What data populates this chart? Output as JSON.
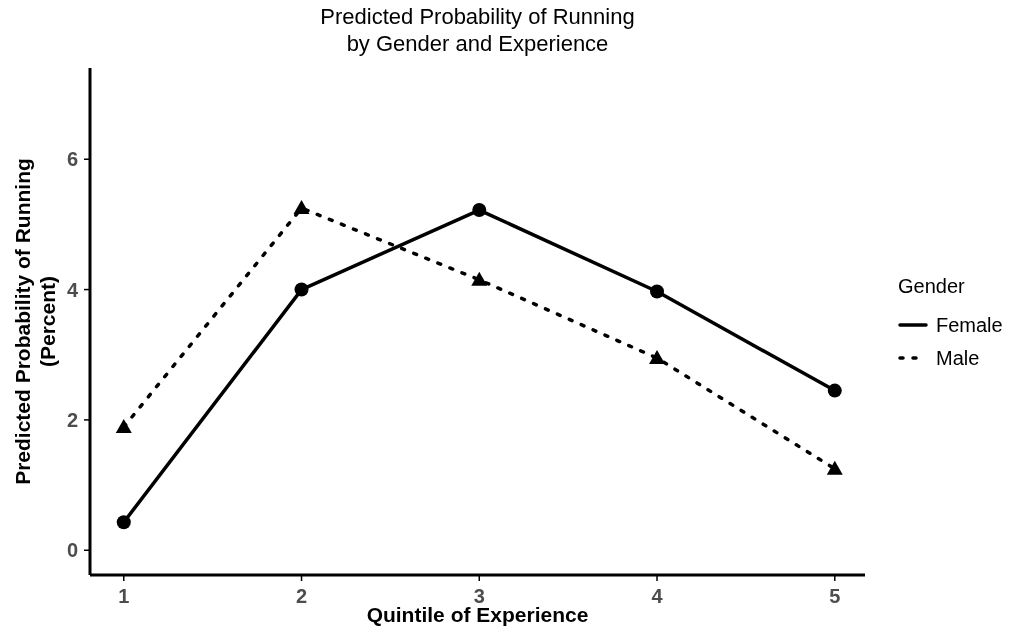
{
  "chart_data": {
    "type": "line",
    "title": "Predicted Probability of Running\nby Gender and Experience",
    "xlabel": "Quintile of Experience",
    "ylabel": "Predicted Probability of Running\n(Percent)",
    "legend_title": "Gender",
    "legend": "right",
    "grid": false,
    "x": [
      1,
      2,
      3,
      4,
      5
    ],
    "xlim": [
      0.81,
      5.17
    ],
    "xticks": [
      1,
      2,
      3,
      4,
      5
    ],
    "ylim": [
      -0.38,
      7.4
    ],
    "yticks": [
      0,
      2,
      4,
      6
    ],
    "series": [
      {
        "name": "Female",
        "color": "#000000",
        "marker": "circle",
        "line_style": "solid",
        "values": [
          0.43,
          4.0,
          5.22,
          3.97,
          2.45
        ]
      },
      {
        "name": "Male",
        "color": "#000000",
        "marker": "triangle",
        "line_style": "dotted",
        "values": [
          1.89,
          5.25,
          4.15,
          2.95,
          1.25
        ]
      }
    ]
  }
}
